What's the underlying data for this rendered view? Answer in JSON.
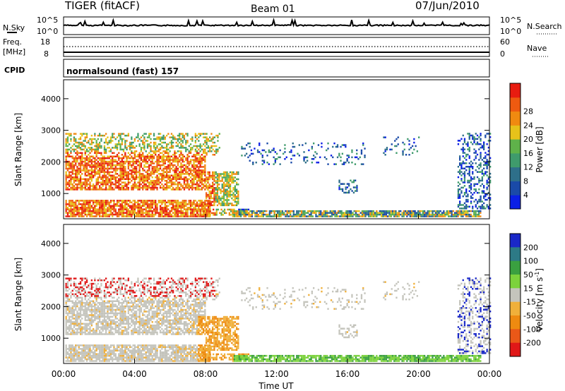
{
  "header": {
    "station": "TIGER (fitACF)",
    "beam": "Beam 01",
    "date": "07/Jun/2010"
  },
  "noise_panel": {
    "left_label": "N.Sky",
    "left_ticks": [
      "10^5",
      "10^0"
    ],
    "right_label": "N.Search",
    "right_ticks": [
      "10^5",
      "10^0"
    ]
  },
  "freq_panel": {
    "left_label_1": "Freq.",
    "left_label_2": "[MHz]",
    "left_ticks": [
      "18",
      "8"
    ],
    "right_label": "Nave",
    "right_ticks": [
      "60",
      "0"
    ]
  },
  "cpid": {
    "label": "CPID",
    "value": "normalsound (fast) 157"
  },
  "chart_data": [
    {
      "type": "heatmap",
      "name": "power",
      "ylabel": "Slant Range [km]",
      "yticks": [
        "1000",
        "2000",
        "3000",
        "4000"
      ],
      "ylim": [
        200,
        4600
      ],
      "xlim": [
        0,
        24
      ],
      "colorbar": {
        "label": "Power [dB]",
        "ticks": [
          "4",
          "8",
          "12",
          "16",
          "20",
          "24",
          "28"
        ],
        "colors": [
          "#0a1fe6",
          "#1a4aa8",
          "#2e6f8a",
          "#3f9b6c",
          "#5fb24a",
          "#e6c21a",
          "#f08a10",
          "#ee5a10",
          "#e81c10"
        ]
      }
    },
    {
      "type": "heatmap",
      "name": "velocity",
      "ylabel": "Slant Range [km]",
      "yticks": [
        "1000",
        "2000",
        "3000",
        "4000"
      ],
      "ylim": [
        200,
        4600
      ],
      "xlim": [
        0,
        24
      ],
      "xticks": [
        "00:00",
        "04:00",
        "08:00",
        "12:00",
        "16:00",
        "20:00",
        "00:00"
      ],
      "xlabel": "Time UT",
      "colorbar": {
        "label": "Velocity [m s",
        "label_sup": "-1",
        "label_end": "]",
        "ticks": [
          "200",
          "100",
          "50",
          "15",
          "-15",
          "-50",
          "-100",
          "-200"
        ],
        "colors": [
          "#1a28c8",
          "#2d7a86",
          "#3aa040",
          "#7cd23c",
          "#c4c4bc",
          "#f0b03a",
          "#ee8a10",
          "#ea5818",
          "#e01818"
        ]
      }
    }
  ]
}
